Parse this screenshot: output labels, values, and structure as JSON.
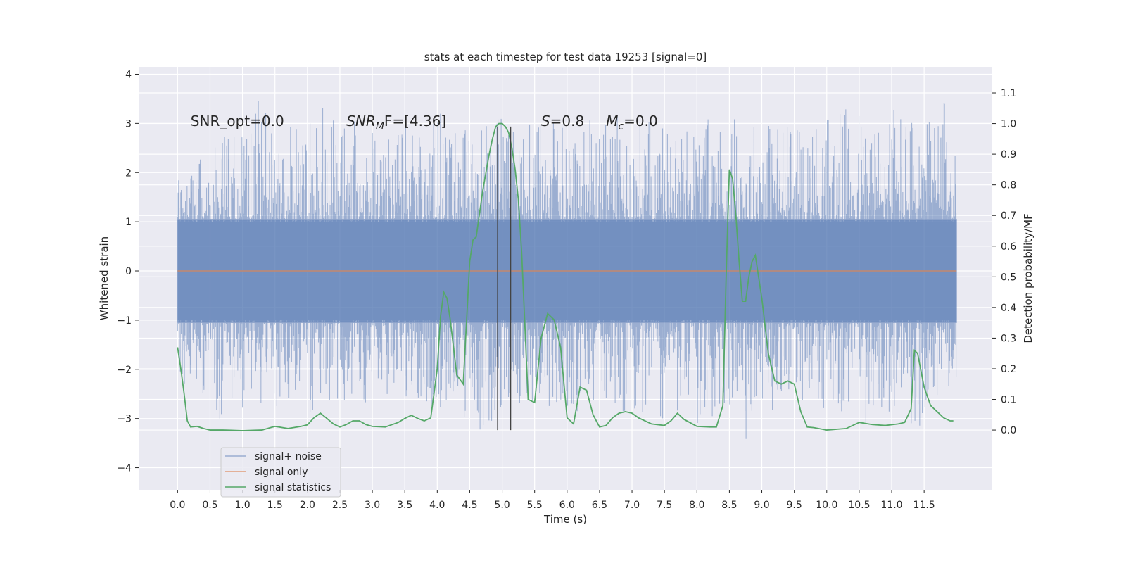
{
  "chart_data": {
    "type": "line",
    "title": "stats at each timestep for test data 19253 [signal=0]",
    "xlabel": "Time (s)",
    "ylabel": "Whitened strain",
    "y2label": "Detection probability/MF",
    "xlim": [
      -0.6,
      12.55
    ],
    "ylim": [
      -4.45,
      4.15
    ],
    "y2lim": [
      -0.195,
      1.185
    ],
    "xticks": [
      0.0,
      0.5,
      1.0,
      1.5,
      2.0,
      2.5,
      3.0,
      3.5,
      4.0,
      4.5,
      5.0,
      5.5,
      6.0,
      6.5,
      7.0,
      7.5,
      8.0,
      8.5,
      9.0,
      9.5,
      10.0,
      10.5,
      11.0,
      11.5
    ],
    "xtick_labels": [
      "0.0",
      "0.5",
      "1.0",
      "1.5",
      "2.0",
      "2.5",
      "3.0",
      "3.5",
      "4.0",
      "4.5",
      "5.0",
      "5.5",
      "6.0",
      "6.5",
      "7.0",
      "7.5",
      "8.0",
      "8.5",
      "9.0",
      "9.5",
      "10.0",
      "10.5",
      "11.0",
      "11.5"
    ],
    "yticks": [
      -4,
      -3,
      -2,
      -1,
      0,
      1,
      2,
      3,
      4
    ],
    "ytick_labels": [
      "−4",
      "−3",
      "−2",
      "−1",
      "0",
      "1",
      "2",
      "3",
      "4"
    ],
    "y2ticks": [
      0.0,
      0.1,
      0.2,
      0.3,
      0.4,
      0.5,
      0.6,
      0.7,
      0.8,
      0.9,
      1.0,
      1.1
    ],
    "y2tick_labels": [
      "0.0",
      "0.1",
      "0.2",
      "0.3",
      "0.4",
      "0.5",
      "0.6",
      "0.7",
      "0.8",
      "0.9",
      "1.0",
      "1.1"
    ],
    "grid": true,
    "legend_position": "lower-left",
    "series": [
      {
        "name": "signal+ noise",
        "color": "#4c72b0",
        "axis": "left",
        "description_range": [
          0.0,
          12.0
        ],
        "envelope": [
          [
            0.0,
            1.85,
            -2.25
          ],
          [
            0.25,
            2.3,
            -2.4
          ],
          [
            0.5,
            2.5,
            -2.6
          ],
          [
            0.75,
            2.9,
            -3.3
          ],
          [
            1.0,
            3.2,
            -2.9
          ],
          [
            1.25,
            3.5,
            -2.7
          ],
          [
            1.5,
            3.2,
            -2.8
          ],
          [
            1.75,
            3.0,
            -2.7
          ],
          [
            2.0,
            3.0,
            -2.9
          ],
          [
            2.25,
            3.6,
            -2.7
          ],
          [
            2.5,
            3.0,
            -2.6
          ],
          [
            2.75,
            3.3,
            -2.7
          ],
          [
            3.0,
            3.0,
            -2.8
          ],
          [
            3.25,
            2.8,
            -2.6
          ],
          [
            3.5,
            3.0,
            -2.7
          ],
          [
            3.75,
            3.1,
            -2.8
          ],
          [
            4.0,
            3.3,
            -2.9
          ],
          [
            4.25,
            2.8,
            -2.6
          ],
          [
            4.5,
            3.2,
            -3.2
          ],
          [
            4.6,
            2.8,
            -3.8
          ],
          [
            4.75,
            3.3,
            -3.1
          ],
          [
            5.0,
            3.2,
            -3.0
          ],
          [
            5.25,
            3.0,
            -2.7
          ],
          [
            5.5,
            3.0,
            -2.7
          ],
          [
            5.75,
            3.0,
            -2.8
          ],
          [
            6.0,
            3.2,
            -2.8
          ],
          [
            6.25,
            3.3,
            -2.9
          ],
          [
            6.5,
            3.0,
            -2.8
          ],
          [
            6.75,
            3.2,
            -2.9
          ],
          [
            7.0,
            3.1,
            -2.8
          ],
          [
            7.25,
            3.2,
            -3.0
          ],
          [
            7.5,
            3.0,
            -3.3
          ],
          [
            7.75,
            3.0,
            -2.9
          ],
          [
            8.0,
            3.1,
            -3.4
          ],
          [
            8.25,
            3.2,
            -3.0
          ],
          [
            8.5,
            3.2,
            -2.8
          ],
          [
            8.75,
            3.0,
            -3.5
          ],
          [
            9.0,
            3.3,
            -2.8
          ],
          [
            9.25,
            3.2,
            -2.9
          ],
          [
            9.5,
            3.0,
            -2.8
          ],
          [
            9.75,
            3.0,
            -2.9
          ],
          [
            10.0,
            3.3,
            -2.8
          ],
          [
            10.25,
            3.3,
            -3.0
          ],
          [
            10.5,
            3.4,
            -2.9
          ],
          [
            10.75,
            3.1,
            -3.3
          ],
          [
            11.0,
            3.6,
            -2.8
          ],
          [
            11.25,
            3.2,
            -3.1
          ],
          [
            11.4,
            3.3,
            -3.5
          ],
          [
            11.5,
            2.9,
            -2.8
          ],
          [
            11.75,
            3.5,
            -2.6
          ],
          [
            11.95,
            3.5,
            -2.3
          ],
          [
            12.0,
            1.5,
            -2.3
          ]
        ]
      },
      {
        "name": "signal only",
        "color": "#dd8452",
        "axis": "left",
        "x": [
          0.0,
          12.0
        ],
        "y": [
          0.0,
          0.0
        ]
      },
      {
        "name": "signal statistics",
        "color": "#55a868",
        "axis": "right",
        "x": [
          0.0,
          0.05,
          0.1,
          0.15,
          0.2,
          0.3,
          0.4,
          0.5,
          0.7,
          1.0,
          1.3,
          1.5,
          1.7,
          1.9,
          2.0,
          2.1,
          2.2,
          2.3,
          2.4,
          2.5,
          2.6,
          2.7,
          2.8,
          2.9,
          3.0,
          3.2,
          3.4,
          3.5,
          3.6,
          3.7,
          3.8,
          3.9,
          4.0,
          4.05,
          4.1,
          4.15,
          4.2,
          4.3,
          4.4,
          4.5,
          4.55,
          4.6,
          4.7,
          4.8,
          4.85,
          4.9,
          4.95,
          5.0,
          5.05,
          5.1,
          5.15,
          5.2,
          5.25,
          5.3,
          5.4,
          5.5,
          5.6,
          5.7,
          5.8,
          5.9,
          6.0,
          6.1,
          6.2,
          6.3,
          6.4,
          6.5,
          6.6,
          6.7,
          6.8,
          6.9,
          7.0,
          7.1,
          7.3,
          7.5,
          7.6,
          7.7,
          7.8,
          8.0,
          8.2,
          8.3,
          8.4,
          8.45,
          8.5,
          8.55,
          8.6,
          8.65,
          8.7,
          8.75,
          8.8,
          8.85,
          8.9,
          8.95,
          9.0,
          9.1,
          9.2,
          9.3,
          9.4,
          9.5,
          9.6,
          9.7,
          9.8,
          10.0,
          10.3,
          10.5,
          10.7,
          10.9,
          11.1,
          11.2,
          11.3,
          11.35,
          11.4,
          11.5,
          11.6,
          11.7,
          11.8,
          11.9,
          11.95
        ],
        "y": [
          0.27,
          0.2,
          0.12,
          0.03,
          0.01,
          0.012,
          0.005,
          0.0,
          0.0,
          -0.002,
          0.0,
          0.012,
          0.005,
          0.012,
          0.017,
          0.04,
          0.055,
          0.038,
          0.02,
          0.01,
          0.018,
          0.03,
          0.03,
          0.018,
          0.012,
          0.01,
          0.025,
          0.038,
          0.048,
          0.038,
          0.03,
          0.04,
          0.2,
          0.37,
          0.45,
          0.43,
          0.36,
          0.18,
          0.15,
          0.55,
          0.62,
          0.63,
          0.78,
          0.9,
          0.95,
          0.99,
          1.0,
          1.0,
          0.99,
          0.97,
          0.92,
          0.85,
          0.75,
          0.58,
          0.1,
          0.09,
          0.3,
          0.38,
          0.36,
          0.27,
          0.04,
          0.02,
          0.14,
          0.13,
          0.05,
          0.01,
          0.015,
          0.04,
          0.055,
          0.06,
          0.055,
          0.04,
          0.02,
          0.015,
          0.03,
          0.055,
          0.035,
          0.012,
          0.01,
          0.01,
          0.08,
          0.5,
          0.85,
          0.82,
          0.7,
          0.55,
          0.42,
          0.42,
          0.5,
          0.55,
          0.57,
          0.5,
          0.43,
          0.25,
          0.16,
          0.15,
          0.16,
          0.15,
          0.06,
          0.01,
          0.008,
          0.0,
          0.005,
          0.025,
          0.018,
          0.015,
          0.02,
          0.025,
          0.07,
          0.26,
          0.25,
          0.14,
          0.08,
          0.06,
          0.04,
          0.03,
          0.03
        ]
      }
    ],
    "vertical_lines": {
      "color": "#444444",
      "x": [
        4.93,
        5.13
      ],
      "y2_range": [
        0.0,
        0.99
      ]
    },
    "annotations": [
      {
        "id": "snr-opt",
        "text": "SNR_opt=0.0",
        "x": 0.2,
        "y": 2.95
      },
      {
        "id": "snr-mf",
        "base": "SNR",
        "sub": "M",
        "suffix": "F=[4.36]",
        "x": 2.6,
        "y": 2.95
      },
      {
        "id": "s",
        "base": "S",
        "suffix": "=0.8",
        "x": 5.6,
        "y": 2.95
      },
      {
        "id": "mc",
        "base": "M",
        "sub": "c",
        "suffix": "=0.0",
        "x": 6.6,
        "y": 2.95
      }
    ]
  }
}
